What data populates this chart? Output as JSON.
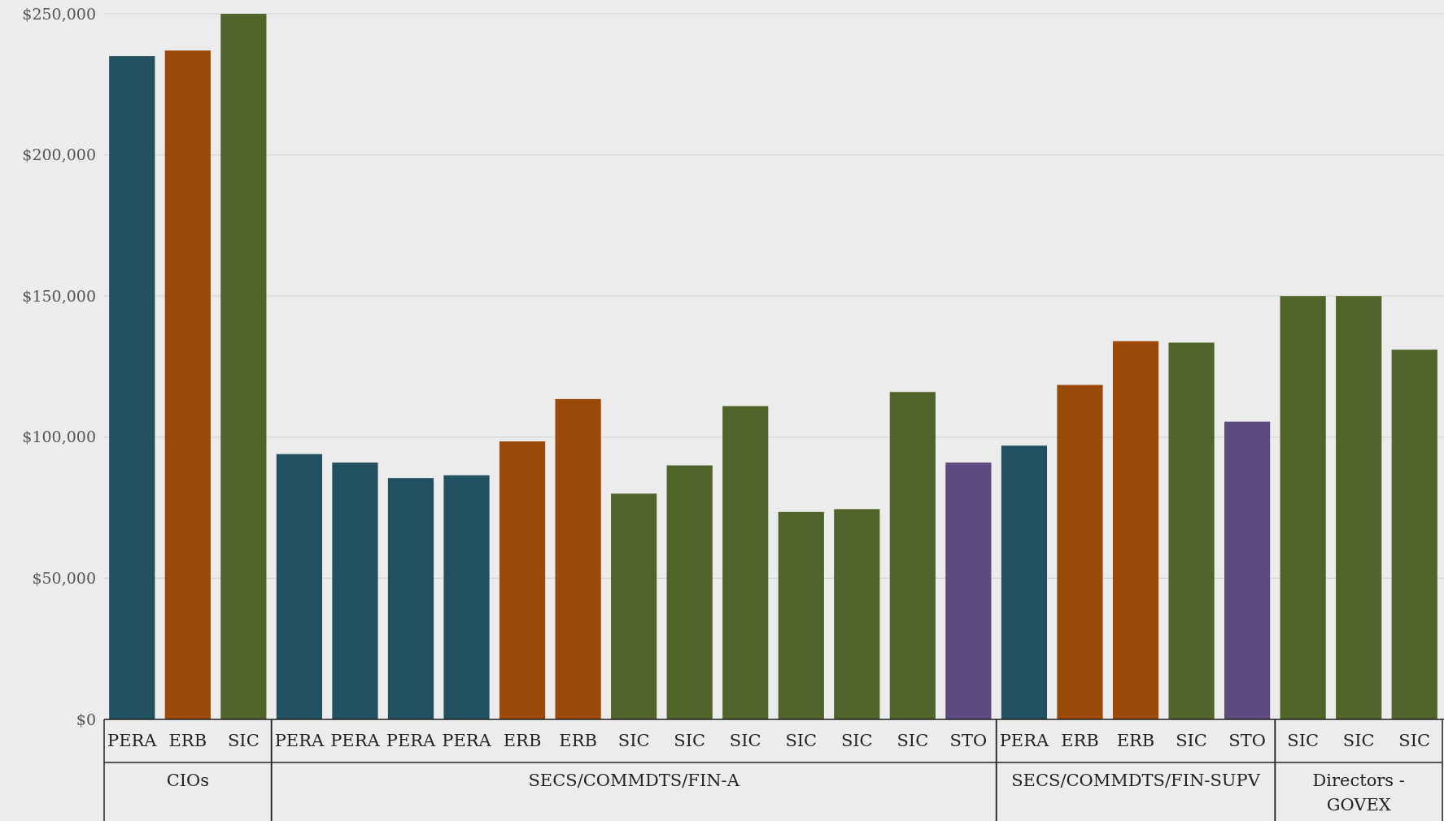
{
  "chart_data": {
    "type": "bar",
    "grid": "y",
    "categories": [
      "PERA",
      "ERB",
      "SIC",
      "PERA",
      "PERA",
      "PERA",
      "PERA",
      "ERB",
      "ERB",
      "SIC",
      "SIC",
      "SIC",
      "SIC",
      "SIC",
      "SIC",
      "STO",
      "PERA",
      "ERB",
      "ERB",
      "SIC",
      "STO",
      "SIC",
      "SIC",
      "SIC"
    ],
    "ylim": [
      0,
      250000
    ],
    "yticks": [
      {
        "value": 0,
        "label": "$0"
      },
      {
        "value": 50000,
        "label": "$50,000"
      },
      {
        "value": 100000,
        "label": "$100,000"
      },
      {
        "value": 150000,
        "label": "$150,000"
      },
      {
        "value": 200000,
        "label": "$200,000"
      },
      {
        "value": 250000,
        "label": "$250,000"
      }
    ],
    "series": [
      {
        "name": "CIOs",
        "values": [
          235000,
          237000,
          250000,
          null,
          null,
          null,
          null,
          null,
          null,
          null,
          null,
          null,
          null,
          null,
          null,
          null,
          null,
          null,
          null,
          null,
          null,
          null,
          null,
          null
        ],
        "colors": [
          "#22505e",
          "#9a4a08",
          "#50632a",
          null,
          null,
          null,
          null,
          null,
          null,
          null,
          null,
          null,
          null,
          null,
          null,
          null,
          null,
          null,
          null,
          null,
          null,
          null,
          null,
          null
        ]
      },
      {
        "name": "SECS/COMMDTS/FIN-A",
        "values": [
          null,
          null,
          null,
          94000,
          91000,
          85500,
          86500,
          98500,
          113500,
          80000,
          90000,
          111000,
          73500,
          74500,
          116000,
          91000,
          null,
          null,
          null,
          null,
          null,
          null,
          null,
          null
        ],
        "colors": [
          null,
          null,
          null,
          "#22505e",
          "#22505e",
          "#22505e",
          "#22505e",
          "#9a4a08",
          "#9a4a08",
          "#50632a",
          "#50632a",
          "#50632a",
          "#50632a",
          "#50632a",
          "#50632a",
          "#5e4a7c",
          null,
          null,
          null,
          null,
          null,
          null,
          null,
          null
        ]
      },
      {
        "name": "SECS/COMMDTS/FIN-SUPV",
        "values": [
          null,
          null,
          null,
          null,
          null,
          null,
          null,
          null,
          null,
          null,
          null,
          null,
          null,
          null,
          null,
          null,
          97000,
          118500,
          134000,
          133500,
          105500,
          null,
          null,
          null
        ],
        "colors": [
          null,
          null,
          null,
          null,
          null,
          null,
          null,
          null,
          null,
          null,
          null,
          null,
          null,
          null,
          null,
          null,
          "#22505e",
          "#9a4a08",
          "#9a4a08",
          "#50632a",
          "#5e4a7c",
          null,
          null,
          null
        ]
      },
      {
        "name": "Directors - GOVEX",
        "values": [
          null,
          null,
          null,
          null,
          null,
          null,
          null,
          null,
          null,
          null,
          null,
          null,
          null,
          null,
          null,
          null,
          null,
          null,
          null,
          null,
          null,
          150000,
          150000,
          131000
        ],
        "colors": [
          null,
          null,
          null,
          null,
          null,
          null,
          null,
          null,
          null,
          null,
          null,
          null,
          null,
          null,
          null,
          null,
          null,
          null,
          null,
          null,
          null,
          "#50632a",
          "#50632a",
          "#50632a"
        ]
      }
    ]
  }
}
